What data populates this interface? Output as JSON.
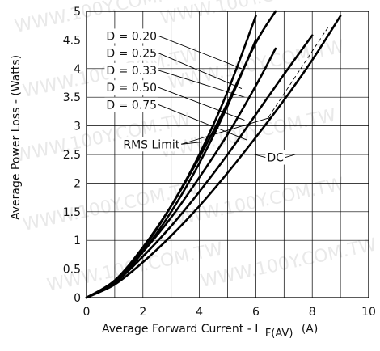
{
  "chart_data": {
    "type": "line",
    "xlabel": "Average Forward Current - I",
    "xlabel_sub": "F(AV)",
    "xlabel_unit": "(A)",
    "ylabel": "Average Power Loss - (Watts)",
    "xlim": [
      0,
      10
    ],
    "ylim": [
      0,
      5
    ],
    "x_ticks": [
      "0",
      "2",
      "4",
      "6",
      "8",
      "10"
    ],
    "y_ticks": [
      "0",
      "0.5",
      "1",
      "1.5",
      "2",
      "2.5",
      "3",
      "3.5",
      "4",
      "4.5",
      "5"
    ],
    "grid": true,
    "series": [
      {
        "name": "D = 0.20",
        "x": [
          0,
          1,
          2,
          3,
          4,
          5,
          6
        ],
        "y": [
          0,
          0.27,
          0.85,
          1.6,
          2.5,
          3.6,
          4.92
        ]
      },
      {
        "name": "D = 0.25",
        "x": [
          0,
          1,
          2,
          3,
          4,
          5,
          6
        ],
        "y": [
          0,
          0.26,
          0.8,
          1.5,
          2.35,
          3.35,
          4.5
        ]
      },
      {
        "name": "D = 0.33",
        "x": [
          0,
          1,
          2,
          3,
          4,
          5,
          6,
          6.7
        ],
        "y": [
          0,
          0.3,
          0.88,
          1.6,
          2.45,
          3.4,
          4.45,
          5.0
        ]
      },
      {
        "name": "D = 0.50",
        "x": [
          0,
          1,
          2,
          3,
          4,
          5,
          6,
          6.7
        ],
        "y": [
          0,
          0.28,
          0.8,
          1.4,
          2.1,
          2.85,
          3.7,
          4.35
        ]
      },
      {
        "name": "D = 0.75",
        "x": [
          0,
          1,
          2,
          3,
          4,
          5,
          6,
          7,
          8
        ],
        "y": [
          0,
          0.26,
          0.72,
          1.25,
          1.85,
          2.5,
          3.2,
          3.9,
          4.58
        ]
      },
      {
        "name": "DC",
        "x": [
          0,
          1,
          2,
          3,
          4,
          5,
          6,
          7,
          8,
          9
        ],
        "y": [
          0,
          0.23,
          0.62,
          1.08,
          1.6,
          2.18,
          2.8,
          3.45,
          4.15,
          4.92
        ]
      }
    ],
    "rms_limit": {
      "x": [
        6.45,
        8.6
      ],
      "y": [
        3.15,
        4.75
      ]
    },
    "annotations": [
      {
        "text": "D = 0.20",
        "x": 0.7,
        "y": 4.57,
        "to_x": 5.5,
        "to_y": 4.0
      },
      {
        "text": "D = 0.25",
        "x": 0.7,
        "y": 4.27,
        "to_x": 5.5,
        "to_y": 3.65
      },
      {
        "text": "D = 0.33",
        "x": 0.7,
        "y": 3.97,
        "to_x": 5.6,
        "to_y": 3.5
      },
      {
        "text": "D = 0.50",
        "x": 0.7,
        "y": 3.67,
        "to_x": 5.6,
        "to_y": 3.1
      },
      {
        "text": "D = 0.75",
        "x": 0.7,
        "y": 3.37,
        "to_x": 5.7,
        "to_y": 2.75
      },
      {
        "text": "RMS Limit",
        "x": 1.3,
        "y": 2.68,
        "to_x": 4.12,
        "to_y": 2.72,
        "to2_x": 6.55,
        "to2_y": 3.15
      },
      {
        "text": "DC",
        "x": 6.4,
        "y": 2.45,
        "to_x": 5.95,
        "to_y": 2.5,
        "to2_x": 7.4,
        "to2_y": 2.5
      }
    ]
  },
  "watermark": "WWW.100Y.COM.TW"
}
